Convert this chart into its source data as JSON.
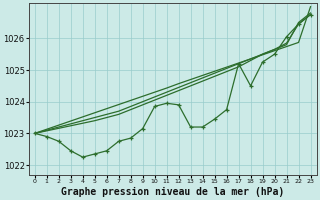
{
  "xlabel": "Graphe pression niveau de la mer (hPa)",
  "background_color": "#cceae7",
  "grid_color": "#99cccc",
  "line_color": "#2d6e2d",
  "hours": [
    0,
    1,
    2,
    3,
    4,
    5,
    6,
    7,
    8,
    9,
    10,
    11,
    12,
    13,
    14,
    15,
    16,
    17,
    18,
    19,
    20,
    21,
    22,
    23
  ],
  "line_straight1": [
    1023.0,
    1023.13,
    1023.26,
    1023.39,
    1023.52,
    1023.65,
    1023.78,
    1023.91,
    1024.04,
    1024.17,
    1024.3,
    1024.43,
    1024.57,
    1024.7,
    1024.83,
    1024.96,
    1025.09,
    1025.22,
    1025.35,
    1025.48,
    1025.61,
    1025.74,
    1025.87,
    1027.0
  ],
  "line_straight2": [
    1023.0,
    1023.1,
    1023.2,
    1023.3,
    1023.4,
    1023.5,
    1023.6,
    1023.7,
    1023.85,
    1024.0,
    1024.15,
    1024.3,
    1024.45,
    1024.6,
    1024.75,
    1024.9,
    1025.05,
    1025.2,
    1025.35,
    1025.5,
    1025.65,
    1025.8,
    1026.5,
    1026.8
  ],
  "line_straight3": [
    1023.0,
    1023.08,
    1023.16,
    1023.24,
    1023.32,
    1023.4,
    1023.5,
    1023.6,
    1023.75,
    1023.9,
    1024.05,
    1024.2,
    1024.35,
    1024.5,
    1024.65,
    1024.8,
    1024.95,
    1025.1,
    1025.3,
    1025.5,
    1025.65,
    1025.85,
    1026.45,
    1026.75
  ],
  "line_jagged": [
    1023.0,
    1022.9,
    1022.75,
    1022.45,
    1022.25,
    1022.35,
    1022.45,
    1022.75,
    1022.85,
    1023.15,
    1023.85,
    1023.95,
    1023.9,
    1023.2,
    1023.2,
    1023.45,
    1023.75,
    1025.2,
    1024.5,
    1025.25,
    1025.5,
    1026.05,
    1026.45,
    1026.75
  ],
  "ylim": [
    1021.7,
    1027.1
  ],
  "yticks": [
    1022,
    1023,
    1024,
    1025,
    1026
  ],
  "xlabel_fontsize": 7,
  "tick_fontsize": 6
}
